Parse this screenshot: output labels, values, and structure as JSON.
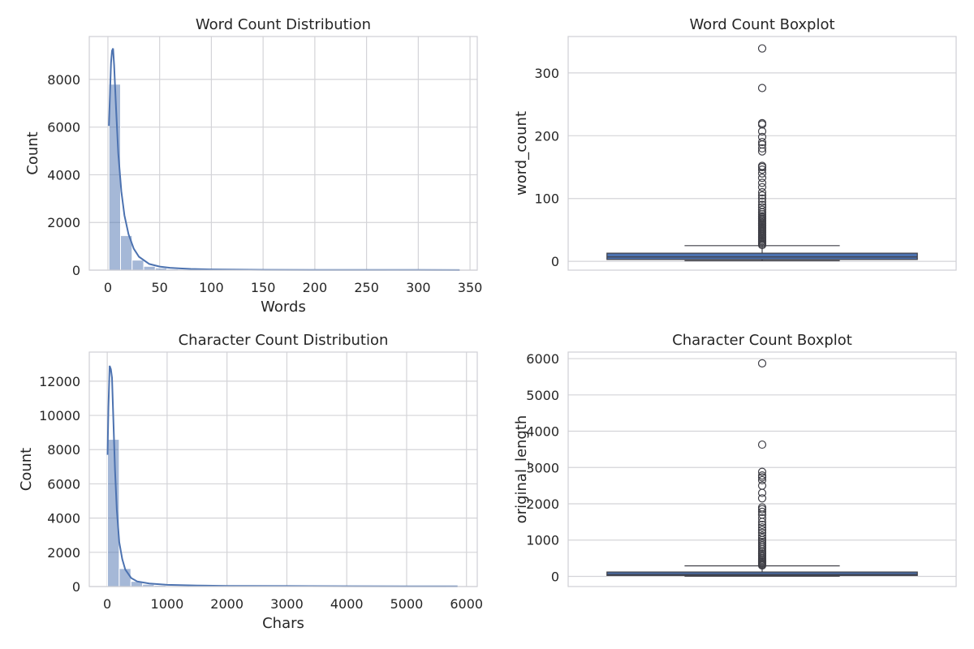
{
  "chart_data": [
    {
      "type": "histogram",
      "title": "Word Count Distribution",
      "xlabel": "Words",
      "ylabel": "Count",
      "xlim": [
        -18,
        357
      ],
      "ylim": [
        0,
        9800
      ],
      "xticks": [
        0,
        50,
        100,
        150,
        200,
        250,
        300,
        350
      ],
      "yticks": [
        0,
        2000,
        4000,
        6000,
        8000
      ],
      "grid": true,
      "bins": {
        "bin_width": 11.2,
        "start": 1,
        "counts": [
          7800,
          1450,
          420,
          160,
          90,
          45,
          25,
          12,
          8,
          5,
          3,
          2,
          2,
          2,
          1,
          1,
          1,
          1,
          1,
          0,
          0,
          0,
          0,
          0,
          1,
          0,
          0,
          0,
          0,
          1
        ]
      },
      "kde": {
        "x": [
          1,
          2,
          3,
          4,
          5,
          6,
          8,
          10,
          13,
          16,
          20,
          25,
          30,
          40,
          50,
          60,
          70,
          80,
          100,
          150,
          200,
          250,
          300,
          340
        ],
        "y": [
          6050,
          7400,
          8700,
          9200,
          9300,
          8600,
          6700,
          4900,
          3300,
          2300,
          1500,
          900,
          560,
          260,
          150,
          100,
          70,
          50,
          30,
          15,
          10,
          10,
          10,
          5
        ]
      }
    },
    {
      "type": "boxplot",
      "title": "Word Count Boxplot",
      "xlabel": "",
      "ylabel": "word_count",
      "ylim": [
        -14,
        358
      ],
      "yticks": [
        0,
        100,
        200,
        300
      ],
      "grid": true,
      "stats": {
        "min": 1,
        "q1": 3,
        "median": 7,
        "q3": 13,
        "max": 25
      },
      "fliers": [
        26,
        28,
        30,
        32,
        34,
        36,
        38,
        40,
        42,
        44,
        46,
        48,
        50,
        52,
        54,
        56,
        58,
        60,
        62,
        64,
        66,
        68,
        70,
        72,
        75,
        78,
        82,
        86,
        90,
        95,
        100,
        105,
        110,
        118,
        125,
        133,
        140,
        146,
        150,
        152,
        175,
        180,
        186,
        190,
        198,
        207,
        218,
        220,
        276,
        339
      ]
    },
    {
      "type": "histogram",
      "title": "Character Count Distribution",
      "xlabel": "Chars",
      "ylabel": "Count",
      "xlim": [
        -300,
        6180
      ],
      "ylim": [
        0,
        13700
      ],
      "xticks": [
        0,
        1000,
        2000,
        3000,
        4000,
        5000,
        6000
      ],
      "yticks": [
        0,
        2000,
        4000,
        6000,
        8000,
        10000,
        12000
      ],
      "grid": true,
      "bins": {
        "bin_width": 195,
        "start": 5,
        "counts": [
          8600,
          1050,
          300,
          130,
          70,
          40,
          25,
          15,
          10,
          8,
          6,
          5,
          4,
          3,
          3,
          2,
          2,
          1,
          1,
          1,
          0,
          0,
          0,
          0,
          0,
          0,
          0,
          0,
          0,
          1
        ]
      },
      "kde": {
        "x": [
          5,
          20,
          40,
          60,
          80,
          100,
          130,
          160,
          200,
          250,
          300,
          400,
          500,
          700,
          1000,
          1500,
          2000,
          3000,
          4000,
          5000,
          5850
        ],
        "y": [
          7700,
          10500,
          12900,
          12700,
          12200,
          10000,
          6800,
          4500,
          2600,
          1600,
          1000,
          500,
          300,
          180,
          100,
          60,
          40,
          30,
          20,
          15,
          10
        ]
      }
    },
    {
      "type": "boxplot",
      "title": "Character Count Boxplot",
      "xlabel": "",
      "ylabel": "original_length",
      "ylim": [
        -280,
        6180
      ],
      "yticks": [
        0,
        1000,
        2000,
        3000,
        4000,
        5000,
        6000
      ],
      "grid": true,
      "stats": {
        "min": 5,
        "q1": 25,
        "median": 55,
        "q3": 120,
        "max": 290
      },
      "fliers": [
        300,
        320,
        345,
        370,
        400,
        430,
        460,
        500,
        540,
        580,
        620,
        660,
        700,
        750,
        800,
        850,
        900,
        950,
        1000,
        1060,
        1120,
        1200,
        1280,
        1350,
        1420,
        1500,
        1600,
        1700,
        1780,
        1850,
        1900,
        2150,
        2300,
        2500,
        2650,
        2730,
        2780,
        2880,
        3630,
        5870
      ]
    }
  ]
}
